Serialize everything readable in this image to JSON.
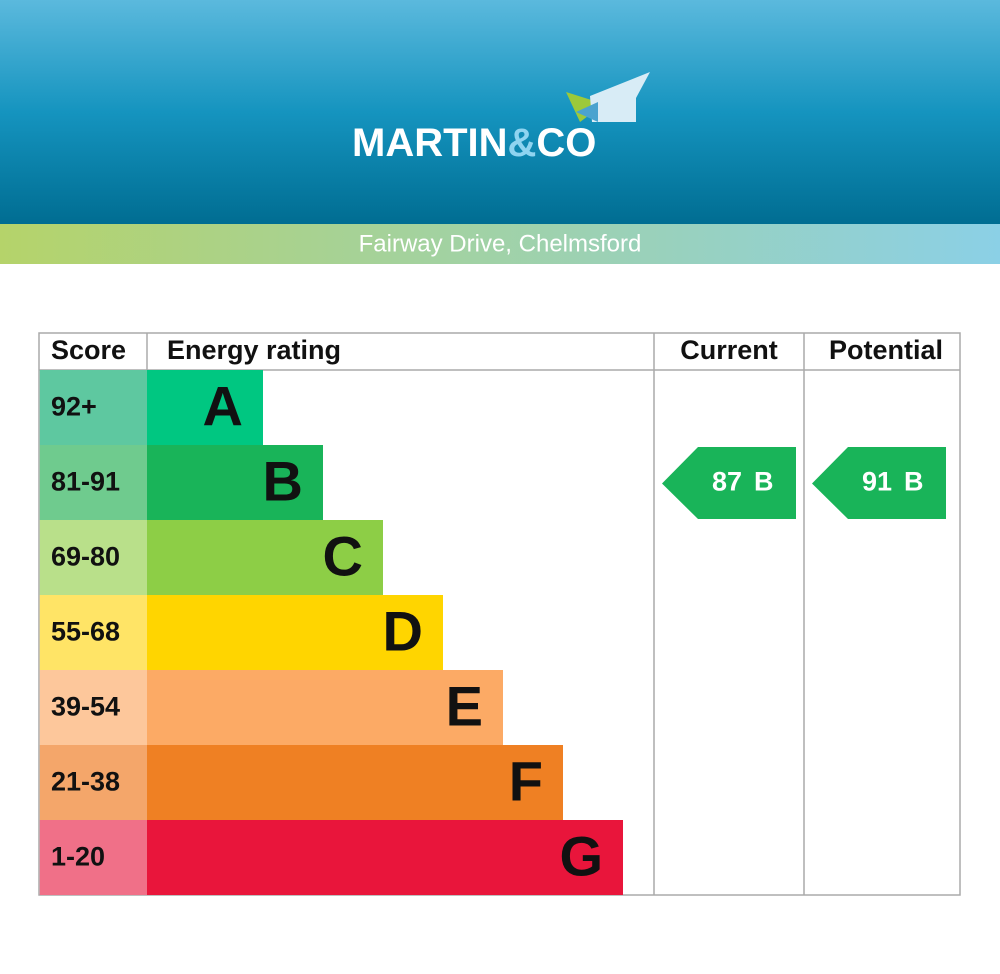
{
  "header": {
    "brand": [
      "MARTIN",
      "&",
      "CO"
    ],
    "address": "Fairway Drive, Chelmsford"
  },
  "table": {
    "headers": [
      "Score",
      "Energy rating",
      "Current",
      "Potential"
    ],
    "rows": [
      {
        "score": "92+",
        "letter": "A"
      },
      {
        "score": "81-91",
        "letter": "B"
      },
      {
        "score": "69-80",
        "letter": "C"
      },
      {
        "score": "55-68",
        "letter": "D"
      },
      {
        "score": "39-54",
        "letter": "E"
      },
      {
        "score": "21-38",
        "letter": "F"
      },
      {
        "score": "1-20",
        "letter": "G"
      }
    ]
  },
  "current": {
    "value": 87,
    "letter": "B"
  },
  "potential": {
    "value": 91,
    "letter": "B"
  }
}
